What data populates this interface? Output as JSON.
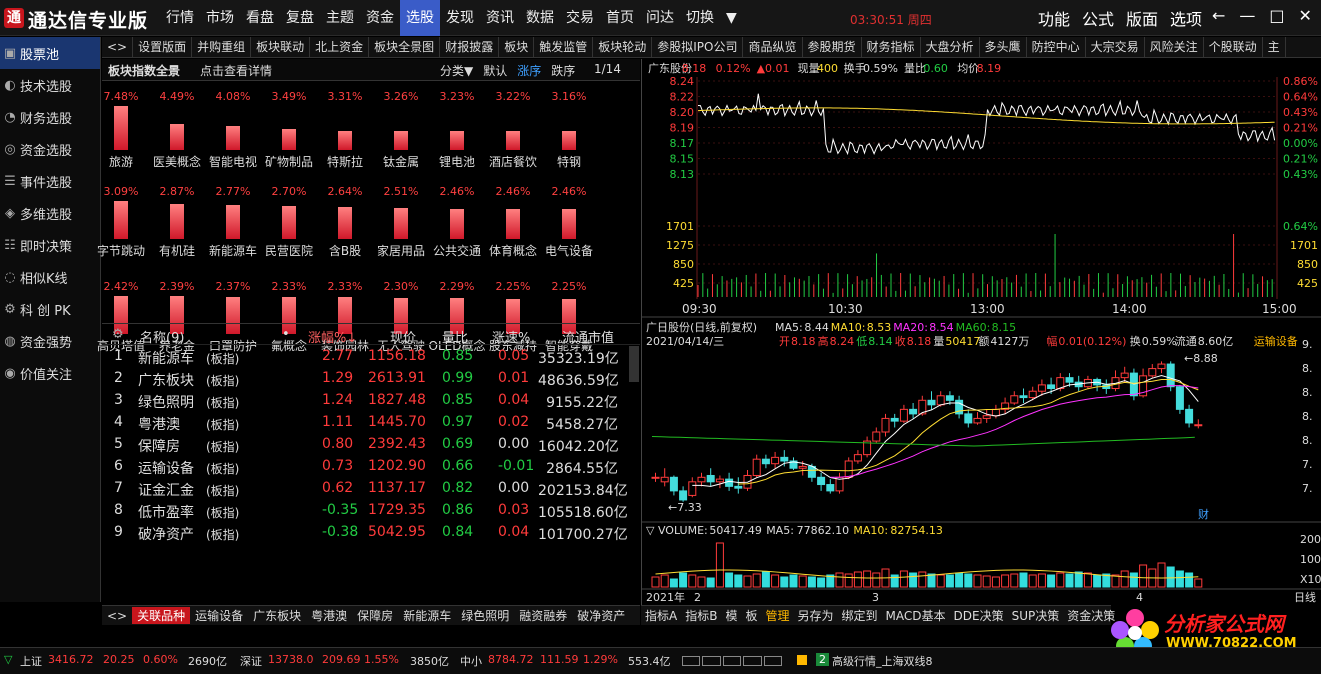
{
  "app": {
    "title": "通达信专业版",
    "logo_glyph": "通"
  },
  "main_menu": [
    "行情",
    "市场",
    "看盘",
    "复盘",
    "主题",
    "资金",
    "选股",
    "发现",
    "资讯",
    "数据",
    "交易",
    "首页",
    "问达",
    "切换",
    "▼"
  ],
  "main_menu_active": 6,
  "clock": "03:30:51  周四",
  "right_menu": [
    "功能",
    "公式",
    "版面",
    "选项"
  ],
  "window_controls": [
    "←",
    "—",
    "□",
    "✕"
  ],
  "sidebar": [
    {
      "label": "股票池",
      "icon": "pool-icon",
      "glyph": "▣"
    },
    {
      "label": "技术选股",
      "icon": "tech-icon",
      "glyph": "◐"
    },
    {
      "label": "财务选股",
      "icon": "finance-icon",
      "glyph": "◔"
    },
    {
      "label": "资金选股",
      "icon": "fund-icon",
      "glyph": "◎"
    },
    {
      "label": "事件选股",
      "icon": "event-icon",
      "glyph": "☰"
    },
    {
      "label": "多维选股",
      "icon": "multi-icon",
      "glyph": "◈"
    },
    {
      "label": "即时决策",
      "icon": "decision-icon",
      "glyph": "☷"
    },
    {
      "label": "相似K线",
      "icon": "kline-icon",
      "glyph": "◌"
    },
    {
      "label": "科 创 PK",
      "icon": "pk-icon",
      "glyph": "⚙"
    },
    {
      "label": "资金强势",
      "icon": "strength-icon",
      "glyph": "◍"
    },
    {
      "label": "价值关注",
      "icon": "value-icon",
      "glyph": "◉"
    }
  ],
  "func_tabs": [
    "<>",
    "设置版面",
    "并购重组",
    "板块联动",
    "北上资金",
    "板块全景图",
    "财报披露",
    "板块",
    "触发监管",
    "板块轮动",
    "参股拟IPO公司",
    "商品纵览",
    "参股期货",
    "财务指标",
    "大盘分析",
    "多头鹰",
    "防控中心",
    "大宗交易",
    "风险关注",
    "个股联动",
    "主"
  ],
  "sector": {
    "title": "板块指数全景",
    "link": "点击查看详情",
    "controls": [
      "分类▼",
      "默认",
      "涨序",
      "跌序"
    ],
    "active_control": 2,
    "page": "1/14",
    "items": [
      {
        "name": "旅游",
        "pct": "7.48%",
        "v": 7.48
      },
      {
        "name": "医美概念",
        "pct": "4.49%",
        "v": 4.49
      },
      {
        "name": "智能电视",
        "pct": "4.08%",
        "v": 4.08
      },
      {
        "name": "矿物制品",
        "pct": "3.49%",
        "v": 3.49
      },
      {
        "name": "特斯拉",
        "pct": "3.31%",
        "v": 3.31
      },
      {
        "name": "钛金属",
        "pct": "3.26%",
        "v": 3.26
      },
      {
        "name": "锂电池",
        "pct": "3.23%",
        "v": 3.23
      },
      {
        "name": "酒店餐饮",
        "pct": "3.22%",
        "v": 3.22
      },
      {
        "name": "特钢",
        "pct": "3.16%",
        "v": 3.16
      },
      {
        "name": "字节跳动",
        "pct": "3.09%",
        "v": 3.09
      },
      {
        "name": "有机硅",
        "pct": "2.87%",
        "v": 2.87
      },
      {
        "name": "新能源车",
        "pct": "2.77%",
        "v": 2.77
      },
      {
        "name": "民营医院",
        "pct": "2.70%",
        "v": 2.7
      },
      {
        "name": "含B股",
        "pct": "2.64%",
        "v": 2.64
      },
      {
        "name": "家居用品",
        "pct": "2.51%",
        "v": 2.51
      },
      {
        "name": "公共交通",
        "pct": "2.46%",
        "v": 2.46
      },
      {
        "name": "体育概念",
        "pct": "2.46%",
        "v": 2.46
      },
      {
        "name": "电气设备",
        "pct": "2.46%",
        "v": 2.46
      },
      {
        "name": "高贝塔值",
        "pct": "2.42%",
        "v": 2.42
      },
      {
        "name": "养老金",
        "pct": "2.39%",
        "v": 2.39
      },
      {
        "name": "口罩防护",
        "pct": "2.37%",
        "v": 2.37
      },
      {
        "name": "氟概念",
        "pct": "2.33%",
        "v": 2.33
      },
      {
        "name": "装饰园林",
        "pct": "2.33%",
        "v": 2.33
      },
      {
        "name": "无人驾驶",
        "pct": "2.30%",
        "v": 2.3
      },
      {
        "name": "OLED概念",
        "pct": "2.29%",
        "v": 2.29
      },
      {
        "name": "股东减持",
        "pct": "2.25%",
        "v": 2.25
      },
      {
        "name": "智能穿戴",
        "pct": "2.25%",
        "v": 2.25
      }
    ]
  },
  "table": {
    "headers": {
      "name": "名称(9)",
      "dot": "•",
      "change": "涨幅%↓",
      "price": "现价",
      "vol_ratio": "量比",
      "speed": "涨速%",
      "mcap": "流通市值"
    },
    "rows": [
      {
        "no": "1",
        "name": "新能源车",
        "tag": "(板指)",
        "change": "2.77",
        "price": "1156.18",
        "vol_ratio": "0.85",
        "speed": "0.05",
        "mcap": "35323.19亿",
        "cc": "red",
        "sc": "red"
      },
      {
        "no": "2",
        "name": "广东板块",
        "tag": "(板指)",
        "change": "1.29",
        "price": "2613.91",
        "vol_ratio": "0.99",
        "speed": "0.01",
        "mcap": "48636.59亿",
        "cc": "red",
        "sc": "red"
      },
      {
        "no": "3",
        "name": "绿色照明",
        "tag": "(板指)",
        "change": "1.24",
        "price": "1827.48",
        "vol_ratio": "0.85",
        "speed": "0.04",
        "mcap": "9155.22亿",
        "cc": "red",
        "sc": "red"
      },
      {
        "no": "4",
        "name": "粤港澳",
        "tag": "(板指)",
        "change": "1.11",
        "price": "1445.70",
        "vol_ratio": "0.97",
        "speed": "0.02",
        "mcap": "5458.27亿",
        "cc": "red",
        "sc": "red"
      },
      {
        "no": "5",
        "name": "保障房",
        "tag": "(板指)",
        "change": "0.80",
        "price": "2392.43",
        "vol_ratio": "0.69",
        "speed": "0.00",
        "mcap": "16042.20亿",
        "cc": "red",
        "sc": "white"
      },
      {
        "no": "6",
        "name": "运输设备",
        "tag": "(板指)",
        "change": "0.73",
        "price": "1202.90",
        "vol_ratio": "0.66",
        "speed": "-0.01",
        "mcap": "2864.55亿",
        "cc": "red",
        "sc": "green"
      },
      {
        "no": "7",
        "name": "证金汇金",
        "tag": "(板指)",
        "change": "0.62",
        "price": "1137.17",
        "vol_ratio": "0.82",
        "speed": "0.00",
        "mcap": "202153.84亿",
        "cc": "red",
        "sc": "white"
      },
      {
        "no": "8",
        "name": "低市盈率",
        "tag": "(板指)",
        "change": "-0.35",
        "price": "1729.35",
        "vol_ratio": "0.86",
        "speed": "0.03",
        "mcap": "105518.60亿",
        "cc": "green",
        "sc": "red"
      },
      {
        "no": "9",
        "name": "破净资产",
        "tag": "(板指)",
        "change": "-0.38",
        "price": "5042.95",
        "vol_ratio": "0.84",
        "speed": "0.04",
        "mcap": "101700.27亿",
        "cc": "green",
        "sc": "red"
      }
    ]
  },
  "related_tabs": [
    "<>",
    "关联品种",
    "运输设备",
    "广东板块",
    "粤港澳",
    "保障房",
    "新能源车",
    "绿色照明",
    "融资融券",
    "破净资产"
  ],
  "intraday": {
    "name": "广东股份",
    "price": "8.18",
    "pct": "0.12%",
    "chg": "▲0.01",
    "cur_vol_label": "现量",
    "cur_vol": "400",
    "turn_label": "换手",
    "turn": "0.59%",
    "ratio_label": "量比",
    "ratio": "0.60",
    "avg_label": "均价",
    "avg": "8.19",
    "left_ticks": [
      "8.24",
      "8.22",
      "8.20",
      "8.19",
      "8.17",
      "8.15",
      "8.13",
      "1701",
      "1275",
      "850",
      "425"
    ],
    "right_ticks": [
      "0.86%",
      "0.64%",
      "0.43%",
      "0.21%",
      "0.00%",
      "0.21%",
      "0.43%",
      "0.64%",
      "1701",
      "850",
      "425"
    ],
    "time_ticks": [
      "09:30",
      "10:30",
      "13:00",
      "14:00",
      "15:00"
    ]
  },
  "kline": {
    "title": "广日股份(日线,前复权)",
    "ma5_label": "MA5:",
    "ma5": "8.44",
    "ma10_label": "MA10:",
    "ma10": "8.53",
    "ma20_label": "MA20:",
    "ma20": "8.54",
    "ma60_label": "MA60:",
    "ma60": "8.15",
    "info1": "2021/04/14/三",
    "open_label": "开",
    "open": "8.18",
    "high_label": "高",
    "high": "8.24",
    "low_label": "低",
    "low": "8.14",
    "close_label": "收",
    "close": "8.18",
    "vol_label": "量",
    "vol": "50417",
    "amt_label": "额",
    "amt": "4127万",
    "amp_label": "幅",
    "amp": "0.01(0.12%)",
    "turn_label": "换",
    "turn": "0.59%",
    "float_label": "流通",
    "float": "8.60亿",
    "sector": "运输设备",
    "hi_mark": "8.88",
    "lo_mark": "7.33",
    "cai": "财",
    "right_ticks": [
      "9.",
      "8.",
      "8.",
      "8.",
      "8.",
      "7.",
      "7."
    ],
    "candles": [
      [
        7.6,
        7.6,
        7.55,
        7.65
      ],
      [
        7.55,
        7.6,
        7.5,
        7.7
      ],
      [
        7.6,
        7.45,
        7.4,
        7.62
      ],
      [
        7.45,
        7.35,
        7.33,
        7.5
      ],
      [
        7.4,
        7.55,
        7.38,
        7.6
      ],
      [
        7.55,
        7.6,
        7.5,
        7.65
      ],
      [
        7.62,
        7.55,
        7.5,
        7.7
      ],
      [
        7.55,
        7.58,
        7.48,
        7.62
      ],
      [
        7.58,
        7.5,
        7.45,
        7.65
      ],
      [
        7.5,
        7.48,
        7.42,
        7.6
      ],
      [
        7.48,
        7.62,
        7.45,
        7.68
      ],
      [
        7.62,
        7.8,
        7.6,
        7.85
      ],
      [
        7.8,
        7.75,
        7.7,
        7.85
      ],
      [
        7.75,
        7.82,
        7.7,
        7.88
      ],
      [
        7.82,
        7.78,
        7.72,
        7.9
      ],
      [
        7.78,
        7.7,
        7.68,
        7.82
      ],
      [
        7.7,
        7.72,
        7.62,
        7.78
      ],
      [
        7.72,
        7.6,
        7.55,
        7.75
      ],
      [
        7.6,
        7.52,
        7.45,
        7.65
      ],
      [
        7.52,
        7.45,
        7.42,
        7.58
      ],
      [
        7.45,
        7.6,
        7.42,
        7.65
      ],
      [
        7.6,
        7.78,
        7.58,
        7.82
      ],
      [
        7.78,
        7.85,
        7.75,
        7.9
      ],
      [
        7.85,
        8.0,
        7.82,
        8.05
      ],
      [
        8.0,
        8.1,
        7.98,
        8.15
      ],
      [
        8.1,
        8.25,
        8.05,
        8.3
      ],
      [
        8.25,
        8.22,
        8.15,
        8.3
      ],
      [
        8.22,
        8.35,
        8.2,
        8.4
      ],
      [
        8.35,
        8.3,
        8.25,
        8.42
      ],
      [
        8.3,
        8.45,
        8.28,
        8.5
      ],
      [
        8.45,
        8.4,
        8.35,
        8.55
      ],
      [
        8.4,
        8.5,
        8.38,
        8.55
      ],
      [
        8.5,
        8.45,
        8.4,
        8.55
      ],
      [
        8.45,
        8.3,
        8.25,
        8.5
      ],
      [
        8.3,
        8.2,
        8.15,
        8.35
      ],
      [
        8.2,
        8.25,
        8.18,
        8.32
      ],
      [
        8.25,
        8.28,
        8.2,
        8.35
      ],
      [
        8.28,
        8.35,
        8.25,
        8.4
      ],
      [
        8.35,
        8.42,
        8.3,
        8.48
      ],
      [
        8.42,
        8.5,
        8.4,
        8.55
      ],
      [
        8.5,
        8.48,
        8.42,
        8.58
      ],
      [
        8.48,
        8.55,
        8.45,
        8.6
      ],
      [
        8.55,
        8.62,
        8.5,
        8.68
      ],
      [
        8.62,
        8.58,
        8.52,
        8.7
      ],
      [
        8.58,
        8.7,
        8.55,
        8.75
      ],
      [
        8.7,
        8.65,
        8.6,
        8.75
      ],
      [
        8.65,
        8.6,
        8.55,
        8.72
      ],
      [
        8.6,
        8.68,
        8.58,
        8.72
      ],
      [
        8.68,
        8.62,
        8.55,
        8.7
      ],
      [
        8.62,
        8.58,
        8.52,
        8.68
      ],
      [
        8.58,
        8.7,
        8.55,
        8.78
      ],
      [
        8.7,
        8.75,
        8.65,
        8.82
      ],
      [
        8.75,
        8.5,
        8.45,
        8.8
      ],
      [
        8.5,
        8.72,
        8.48,
        8.8
      ],
      [
        8.72,
        8.8,
        8.7,
        8.85
      ],
      [
        8.8,
        8.85,
        8.75,
        8.88
      ],
      [
        8.85,
        8.6,
        8.55,
        8.88
      ],
      [
        8.6,
        8.35,
        8.3,
        8.62
      ],
      [
        8.35,
        8.2,
        8.15,
        8.4
      ],
      [
        8.18,
        8.18,
        8.14,
        8.24
      ]
    ]
  },
  "volume": {
    "label": "VOLUME:",
    "value": "50417.49",
    "ma5_label": "MA5:",
    "ma5": "77862.10",
    "ma10_label": "MA10:",
    "ma10": "82754.13",
    "right_ticks": [
      "200",
      "100",
      "X10"
    ],
    "x_ticks": [
      "2021年",
      "2",
      "3",
      "4"
    ],
    "x_extra": "日线"
  },
  "indicator_tabs": [
    "指标A",
    "指标B",
    "模",
    "板",
    "管理",
    "另存为",
    "绑定到",
    "MACD基本",
    "DDE决策",
    "SUP决策",
    "资金决策"
  ],
  "indicator_active": 4,
  "watermark": {
    "text1": "分析家公式网",
    "text2": "WWW.70822.COM"
  },
  "status": {
    "sh_label": "上证",
    "sh_val": "3416.72",
    "sh_chg": "20.25",
    "sh_pct": "0.60%",
    "sh_amt": "2690亿",
    "sz_label": "深证",
    "sz_val": "13738.0",
    "sz_chg": "209.69",
    "sz_pct": "1.55%",
    "sz_amt": "3850亿",
    "zx_label": "中小",
    "zx_val": "8784.72",
    "zx_chg": "111.59",
    "zx_pct": "1.29%",
    "zx_amt": "553.4亿",
    "badge": "2",
    "feed": "高级行情_上海双线8"
  },
  "colors": {
    "up": "#ff3b3b",
    "down": "#22cc44",
    "accent": "#3a5cc8",
    "ma5": "#ffffff",
    "ma10": "#ffdd33",
    "ma20": "#ff33ff",
    "ma60": "#22bb22",
    "volume": "#33dddd"
  }
}
